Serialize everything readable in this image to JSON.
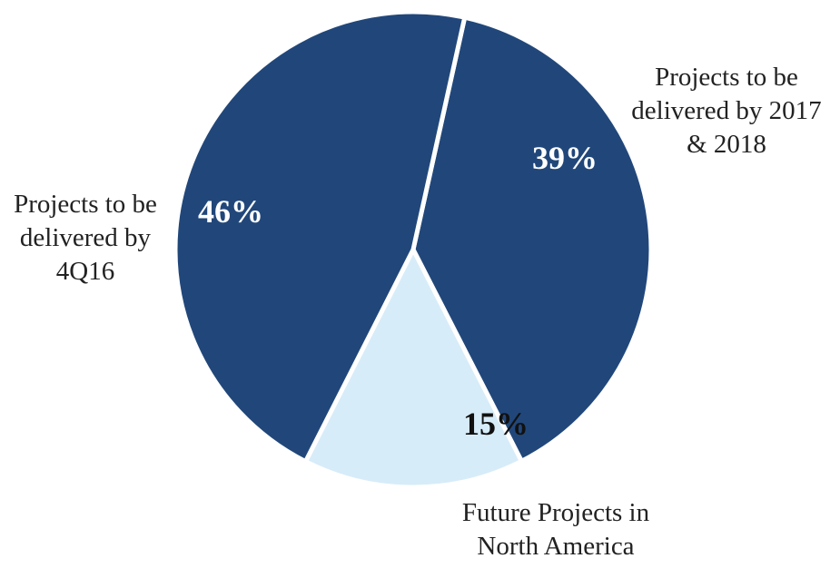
{
  "chart_data": {
    "type": "pie",
    "title": "",
    "slices": [
      {
        "label_lines": [
          "Projects to be",
          "delivered by 2017",
          "& 2018"
        ],
        "value": 39,
        "display": "39%",
        "color": "#21477a",
        "text_color": "#ffffff"
      },
      {
        "label_lines": [
          "Future Projects in",
          "North America"
        ],
        "value": 15,
        "display": "15%",
        "color": "#d7ecf9",
        "text_color": "#111111"
      },
      {
        "label_lines": [
          "Projects to be",
          "delivered by",
          "4Q16"
        ],
        "value": 46,
        "display": "46%",
        "color": "#21477a",
        "text_color": "#ffffff"
      }
    ],
    "start_angle_deg": 12.5,
    "direction": "clockwise",
    "legend": "none",
    "slice_border_color": "#ffffff"
  }
}
